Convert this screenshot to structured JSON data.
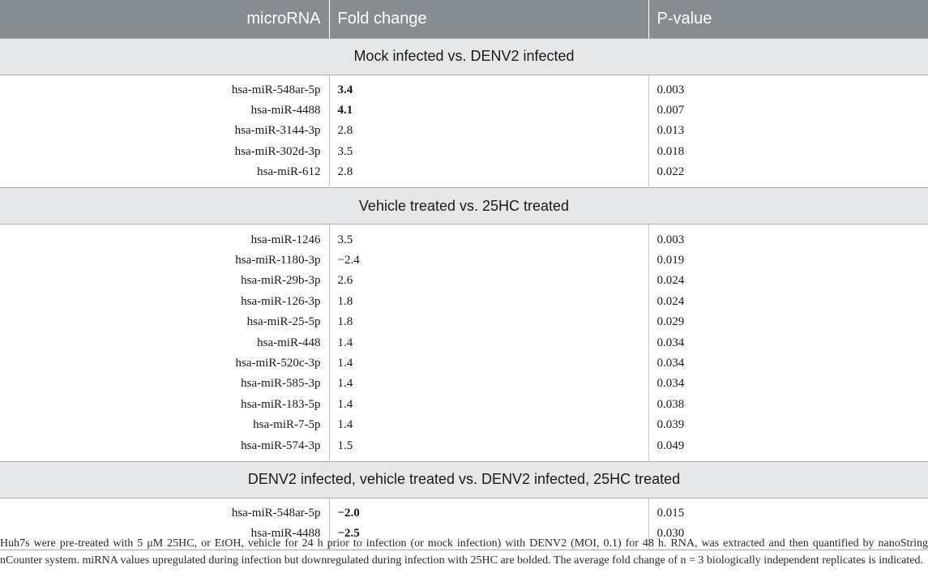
{
  "table": {
    "headers": [
      "microRNA",
      "Fold change",
      "P-value"
    ],
    "sections": [
      {
        "title": "Mock infected vs. DENV2 infected",
        "rows": [
          {
            "mirna": "hsa-miR-548ar-5p",
            "fold": "3.4",
            "p": "0.003",
            "bold": true
          },
          {
            "mirna": "hsa-miR-4488",
            "fold": "4.1",
            "p": "0.007",
            "bold": true
          },
          {
            "mirna": "hsa-miR-3144-3p",
            "fold": "2.8",
            "p": "0.013",
            "bold": false
          },
          {
            "mirna": "hsa-miR-302d-3p",
            "fold": "3.5",
            "p": "0.018",
            "bold": false
          },
          {
            "mirna": "hsa-miR-612",
            "fold": "2.8",
            "p": "0.022",
            "bold": false
          }
        ]
      },
      {
        "title": "Vehicle treated vs. 25HC treated",
        "rows": [
          {
            "mirna": "hsa-miR-1246",
            "fold": "3.5",
            "p": "0.003",
            "bold": false
          },
          {
            "mirna": "hsa-miR-1180-3p",
            "fold": "−2.4",
            "p": "0.019",
            "bold": false
          },
          {
            "mirna": "hsa-miR-29b-3p",
            "fold": "2.6",
            "p": "0.024",
            "bold": false
          },
          {
            "mirna": "hsa-miR-126-3p",
            "fold": "1.8",
            "p": "0.024",
            "bold": false
          },
          {
            "mirna": "hsa-miR-25-5p",
            "fold": "1.8",
            "p": "0.029",
            "bold": false
          },
          {
            "mirna": "hsa-miR-448",
            "fold": "1.4",
            "p": "0.034",
            "bold": false
          },
          {
            "mirna": "hsa-miR-520c-3p",
            "fold": "1.4",
            "p": "0.034",
            "bold": false
          },
          {
            "mirna": "hsa-miR-585-3p",
            "fold": "1.4",
            "p": "0.034",
            "bold": false
          },
          {
            "mirna": "hsa-miR-183-5p",
            "fold": "1.4",
            "p": "0.038",
            "bold": false
          },
          {
            "mirna": "hsa-miR-7-5p",
            "fold": "1.4",
            "p": "0.039",
            "bold": false
          },
          {
            "mirna": "hsa-miR-574-3p",
            "fold": "1.5",
            "p": "0.049",
            "bold": false
          }
        ]
      },
      {
        "title": "DENV2 infected, vehicle treated vs. DENV2 infected, 25HC treated",
        "rows": [
          {
            "mirna": "hsa-miR-548ar-5p",
            "fold": "−2.0",
            "p": "0.015",
            "bold": true
          },
          {
            "mirna": "hsa-miR-4488",
            "fold": "−2.5",
            "p": "0.030",
            "bold": true
          }
        ]
      }
    ]
  },
  "footnote": "Huh7s were pre-treated with 5 μM 25HC, or EtOH, vehicle for 24 h prior to infection (or mock infection) with DENV2 (MOI, 0.1) for 48 h. RNA, was extracted and then quantified by nanoString nCounter system. miRNA values upregulated during infection but downregulated during infection with 25HC are bolded. The average fold change of n = 3 biologically independent replicates is indicated."
}
